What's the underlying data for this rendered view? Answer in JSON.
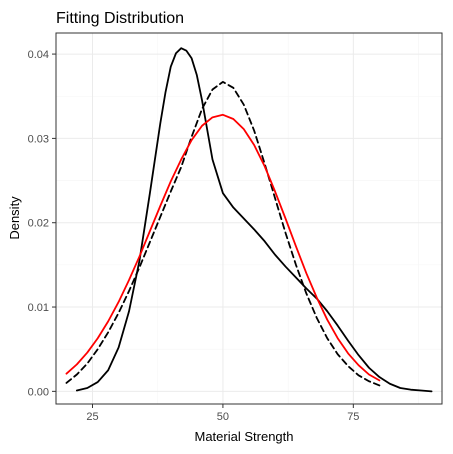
{
  "chart_data": {
    "type": "line",
    "title": "Fitting Distribution",
    "xlabel": "Material Strength",
    "ylabel": "Density",
    "xlim": [
      18,
      92
    ],
    "ylim": [
      -0.0015,
      0.0425
    ],
    "x_ticks": [
      25,
      50,
      75
    ],
    "x_tick_labels": [
      "25",
      "50",
      "75"
    ],
    "x_minor_ticks": [
      37.5,
      62.5,
      87.5
    ],
    "y_ticks": [
      0.0,
      0.01,
      0.02,
      0.03,
      0.04
    ],
    "y_tick_labels": [
      "0.00",
      "0.01",
      "0.02",
      "0.03",
      "0.04"
    ],
    "y_minor_ticks": [
      0.005,
      0.015,
      0.025,
      0.035
    ],
    "grid": true,
    "legend": "none",
    "series": [
      {
        "style": "solid",
        "color": "#000000",
        "x": [
          22,
          24,
          26,
          28,
          30,
          32,
          34,
          36,
          38,
          39,
          40,
          41,
          42,
          43,
          44,
          45,
          46,
          47,
          48,
          50,
          52,
          54,
          56,
          58,
          60,
          62,
          64,
          66,
          68,
          70,
          72,
          74,
          76,
          78,
          80,
          82,
          84,
          86,
          88,
          90
        ],
        "y": [
          0.0001,
          0.0004,
          0.0011,
          0.0025,
          0.0052,
          0.0095,
          0.0155,
          0.0235,
          0.0318,
          0.0355,
          0.0385,
          0.0401,
          0.0407,
          0.0404,
          0.0395,
          0.0375,
          0.0345,
          0.031,
          0.0275,
          0.0235,
          0.0218,
          0.0205,
          0.0192,
          0.0178,
          0.0162,
          0.0148,
          0.0135,
          0.0122,
          0.011,
          0.0095,
          0.0078,
          0.006,
          0.0043,
          0.0028,
          0.0017,
          0.0009,
          0.0004,
          0.0002,
          0.0001,
          0.0
        ]
      },
      {
        "style": "dashed",
        "color": "#000000",
        "x": [
          20,
          22,
          24,
          26,
          28,
          30,
          32,
          34,
          36,
          38,
          40,
          42,
          44,
          46,
          48,
          50,
          52,
          54,
          56,
          58,
          60,
          62,
          64,
          66,
          68,
          70,
          72,
          74,
          76,
          78,
          80
        ],
        "y": [
          0.001,
          0.002,
          0.0033,
          0.005,
          0.007,
          0.0093,
          0.0119,
          0.0147,
          0.0177,
          0.0207,
          0.0237,
          0.0266,
          0.0302,
          0.0335,
          0.0358,
          0.0367,
          0.036,
          0.034,
          0.0309,
          0.027,
          0.0229,
          0.0188,
          0.015,
          0.0116,
          0.0087,
          0.0063,
          0.0044,
          0.003,
          0.0019,
          0.0012,
          0.0007
        ]
      },
      {
        "style": "solid",
        "color": "#ff0000",
        "x": [
          20,
          22,
          24,
          26,
          28,
          30,
          32,
          34,
          36,
          38,
          40,
          42,
          44,
          46,
          48,
          50,
          52,
          54,
          56,
          58,
          60,
          62,
          64,
          66,
          68,
          70,
          72,
          74,
          76,
          78,
          80
        ],
        "y": [
          0.0021,
          0.0032,
          0.0046,
          0.0063,
          0.0083,
          0.0106,
          0.0132,
          0.016,
          0.019,
          0.022,
          0.0249,
          0.0275,
          0.0298,
          0.0315,
          0.0325,
          0.0328,
          0.0323,
          0.0311,
          0.0292,
          0.0267,
          0.0237,
          0.0205,
          0.0172,
          0.014,
          0.0111,
          0.0085,
          0.0063,
          0.0045,
          0.0031,
          0.002,
          0.0013
        ]
      }
    ]
  }
}
